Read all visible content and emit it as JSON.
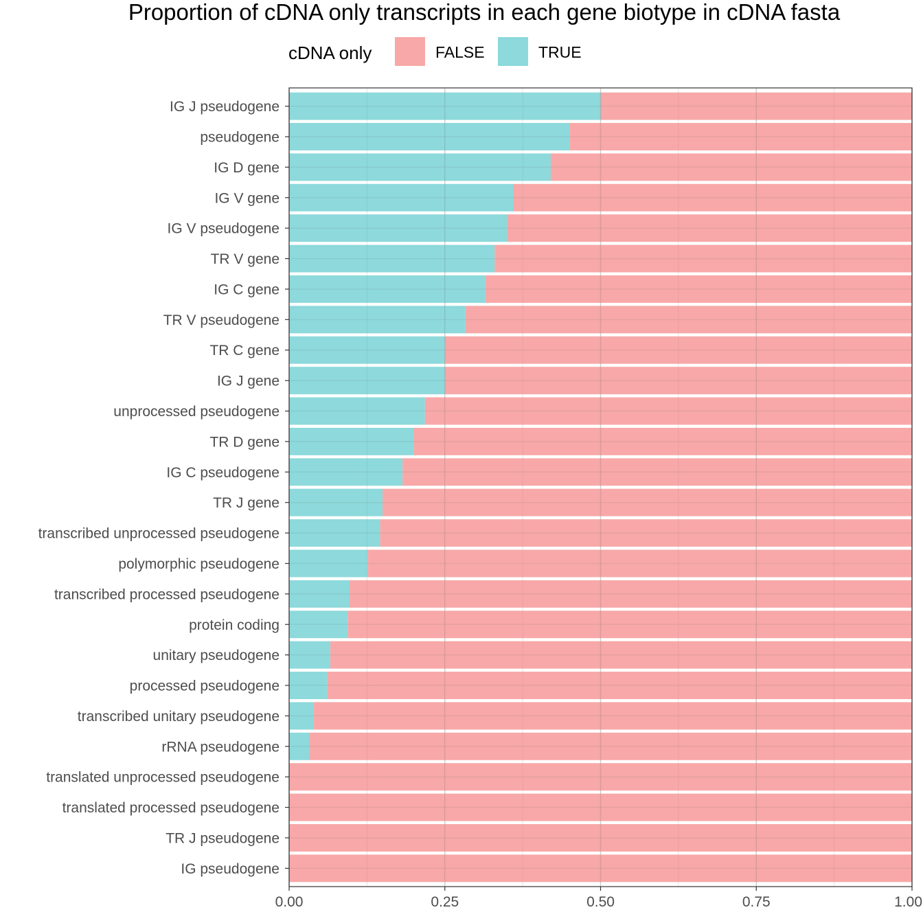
{
  "chart_data": {
    "type": "bar",
    "orientation": "horizontal",
    "stacked": true,
    "title": "Proportion of cDNA only transcripts in each gene biotype in cDNA fasta",
    "xlabel": "",
    "ylabel": "",
    "xlim": [
      0,
      1
    ],
    "x_ticks": [
      "0.00",
      "0.25",
      "0.50",
      "0.75",
      "1.00"
    ],
    "grid": true,
    "legend": {
      "title": "cDNA only",
      "position": "top",
      "entries": [
        {
          "label": "FALSE",
          "color": "#f8a8a8"
        },
        {
          "label": "TRUE",
          "color": "#8dd9db"
        }
      ]
    },
    "categories": [
      "IG J pseudogene",
      "pseudogene",
      "IG D gene",
      "IG V gene",
      "IG V pseudogene",
      "TR V gene",
      "IG C gene",
      "TR V pseudogene",
      "TR C gene",
      "IG J gene",
      "unprocessed pseudogene",
      "TR D gene",
      "IG C pseudogene",
      "TR J gene",
      "transcribed unprocessed pseudogene",
      "polymorphic pseudogene",
      "transcribed processed pseudogene",
      "protein coding",
      "unitary pseudogene",
      "processed pseudogene",
      "transcribed unitary pseudogene",
      "rRNA pseudogene",
      "translated unprocessed pseudogene",
      "translated processed pseudogene",
      "TR J pseudogene",
      "IG pseudogene"
    ],
    "series": [
      {
        "name": "TRUE",
        "color": "#8dd9db",
        "values": [
          0.5,
          0.45,
          0.42,
          0.36,
          0.35,
          0.33,
          0.315,
          0.283,
          0.25,
          0.25,
          0.218,
          0.2,
          0.182,
          0.15,
          0.146,
          0.126,
          0.097,
          0.094,
          0.066,
          0.061,
          0.039,
          0.032,
          0,
          0,
          0,
          0
        ]
      },
      {
        "name": "FALSE",
        "color": "#f8a8a8",
        "values": [
          0.5,
          0.55,
          0.58,
          0.64,
          0.65,
          0.67,
          0.685,
          0.717,
          0.75,
          0.75,
          0.782,
          0.8,
          0.818,
          0.85,
          0.854,
          0.874,
          0.903,
          0.906,
          0.934,
          0.939,
          0.961,
          0.968,
          1,
          1,
          1,
          1
        ]
      }
    ]
  }
}
